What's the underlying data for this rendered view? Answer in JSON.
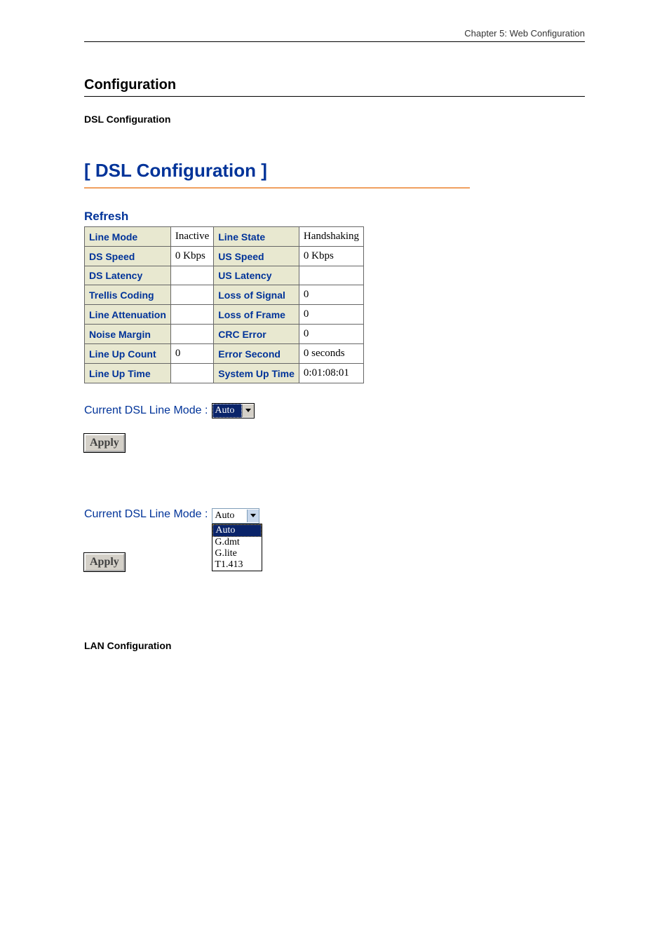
{
  "chapter_header": "Chapter 5: Web Configuration",
  "section_title": "Configuration",
  "subsection_title": "DSL Configuration",
  "panel_title": "[ DSL Configuration ]",
  "refresh_label": "Refresh",
  "table": {
    "rows": [
      {
        "l1": "Line Mode",
        "v1": "Inactive",
        "l2": "Line State",
        "v2": "Handshaking"
      },
      {
        "l1": "DS Speed",
        "v1": "0 Kbps",
        "l2": "US Speed",
        "v2": "0 Kbps"
      },
      {
        "l1": "DS Latency",
        "v1": "",
        "l2": "US Latency",
        "v2": ""
      },
      {
        "l1": "Trellis Coding",
        "v1": "",
        "l2": "Loss of Signal",
        "v2": "0"
      },
      {
        "l1": "Line Attenuation",
        "v1": "",
        "l2": "Loss of Frame",
        "v2": "0"
      },
      {
        "l1": "Noise Margin",
        "v1": "",
        "l2": "CRC Error",
        "v2": "0"
      },
      {
        "l1": "Line Up Count",
        "v1": "0",
        "l2": "Error Second",
        "v2": "0 seconds"
      },
      {
        "l1": "Line Up Time",
        "v1": "",
        "l2": "System Up Time",
        "v2": "0:01:08:01"
      }
    ],
    "label_bg": "#e8e8d0",
    "label_color": "#003399",
    "value_bg": "#ffffff",
    "border_color": "#666666"
  },
  "mode_label": "Current DSL Line Mode :",
  "mode_selected_closed": "Auto",
  "mode_selected_open": "Auto",
  "mode_options": [
    "Auto",
    "G.dmt",
    "G.lite",
    "T1.413"
  ],
  "apply_label": "Apply",
  "lan_title": "LAN Configuration",
  "colors": {
    "title_blue": "#003399",
    "hr_orange": "#f0a060",
    "select_highlight_bg": "#0a246a",
    "button_bg": "#d4d0c8"
  }
}
